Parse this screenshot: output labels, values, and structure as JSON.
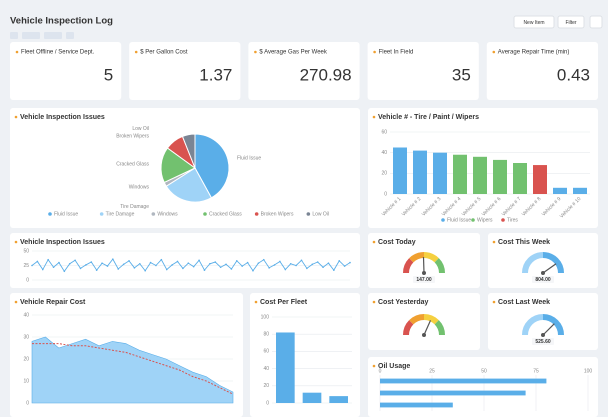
{
  "header": {
    "title": "Vehicle Inspection Log",
    "buttons": [
      "New Item",
      "Filter"
    ]
  },
  "kpis": [
    {
      "label": "Fleet Offline / Service Dept.",
      "value": 5
    },
    {
      "label": "$ Per Gallon Cost",
      "value": 1.37
    },
    {
      "label": "$ Average Gas Per Week",
      "value": 270.98
    },
    {
      "label": "Fleet In Field",
      "value": 35
    },
    {
      "label": "Average Repair Time (min)",
      "value": 0.43
    }
  ],
  "chart_data": [
    {
      "type": "pie",
      "title": "Vehicle Inspection Issues",
      "categories": [
        "Fluid Issue",
        "Tire Damage",
        "Windows",
        "Cracked Glass",
        "Broken Wipers",
        "Low Oil"
      ],
      "values": [
        42,
        24,
        2,
        17,
        9,
        6
      ],
      "colors": [
        "#5aaee8",
        "#9fd3f7",
        "#b0b7c0",
        "#72c16f",
        "#d9534f",
        "#7a8594"
      ]
    },
    {
      "type": "bar",
      "title": "Vehicle # - Tire / Paint / Wipers",
      "categories": [
        "Vehicle # 1",
        "Vehicle # 2",
        "Vehicle # 3",
        "Vehicle # 4",
        "Vehicle # 5",
        "Vehicle # 6",
        "Vehicle # 7",
        "Vehicle # 8",
        "Vehicle # 9",
        "Vehicle # 10"
      ],
      "series": [
        {
          "name": "Fluid Issue",
          "color": "#5aaee8",
          "values": [
            45,
            42,
            40,
            null,
            null,
            null,
            null,
            null,
            6,
            6
          ]
        },
        {
          "name": "Wipers",
          "color": "#72c16f",
          "values": [
            null,
            null,
            null,
            38,
            36,
            33,
            30,
            null,
            null,
            null
          ]
        },
        {
          "name": "Tires",
          "color": "#d9534f",
          "values": [
            null,
            null,
            null,
            null,
            null,
            null,
            null,
            28,
            null,
            null
          ]
        }
      ],
      "ylim": [
        0,
        60
      ],
      "yticks": [
        0,
        20,
        40,
        60
      ],
      "grid": true
    },
    {
      "type": "line",
      "title": "Vehicle Inspection Issues",
      "color": "#5aaee8",
      "values": [
        25,
        32,
        18,
        35,
        22,
        30,
        15,
        28,
        34,
        20,
        26,
        31,
        17,
        29,
        24,
        36,
        19,
        27,
        33,
        21,
        28,
        16,
        30,
        25,
        35,
        18,
        26,
        32,
        20,
        29,
        23,
        34,
        17,
        28,
        31,
        22,
        27,
        19,
        33,
        24,
        30,
        16,
        29,
        35,
        21,
        26,
        32,
        18,
        28,
        25,
        34,
        20,
        27,
        31,
        22,
        29,
        17,
        33,
        24,
        30
      ],
      "ylim": [
        0,
        50
      ],
      "yticks": [
        0,
        25,
        50
      ],
      "grid": true
    },
    {
      "type": "area",
      "title": "Vehicle Repair Cost",
      "color": "#9fd3f7",
      "trend_color": "#d9534f",
      "values": [
        28,
        30,
        25,
        27,
        29,
        26,
        28,
        27,
        24,
        22,
        20,
        17,
        14,
        12,
        8,
        5
      ],
      "trend": [
        27,
        27,
        27,
        26,
        26,
        25,
        24,
        23,
        21,
        19,
        17,
        15,
        12,
        10,
        7,
        4
      ],
      "ylim": [
        0,
        40
      ],
      "yticks": [
        0,
        10,
        20,
        30,
        40
      ],
      "grid": true
    },
    {
      "type": "bar",
      "title": "Cost Per Fleet",
      "categories": [
        null,
        null,
        null
      ],
      "series": [
        {
          "name": null,
          "color": "#5aaee8",
          "values": [
            82,
            12,
            8
          ]
        }
      ],
      "ylim": [
        0,
        100
      ],
      "yticks": [
        0,
        20,
        40,
        60,
        80,
        100
      ],
      "grid": true
    },
    {
      "type": "gauge",
      "title": "Cost Today",
      "values": [
        147
      ],
      "value_labels": [
        "147.00"
      ],
      "ylim": [
        0,
        300
      ],
      "colors": [
        "#d9534f",
        "#f0a030",
        "#f5d040",
        "#72c16f"
      ]
    },
    {
      "type": "gauge",
      "title": "Cost This Week",
      "values": [
        804
      ],
      "value_labels": [
        "804.00"
      ],
      "ylim": [
        0,
        1000
      ],
      "colors": [
        "#9fd3f7",
        "#5aaee8"
      ]
    },
    {
      "type": "gauge",
      "title": "Cost Yesterday",
      "values": [
        190
      ],
      "ylim": [
        0,
        300
      ],
      "colors": [
        "#d9534f",
        "#f0a030",
        "#f5d040",
        "#72c16f"
      ]
    },
    {
      "type": "gauge",
      "title": "Cost Last Week",
      "values": [
        525.6
      ],
      "value_labels": [
        "525.60"
      ],
      "ylim": [
        0,
        700
      ],
      "colors": [
        "#9fd3f7",
        "#5aaee8"
      ]
    },
    {
      "type": "hbar",
      "title": "Oil Usage",
      "color": "#5aaee8",
      "categories": [
        null,
        null,
        null
      ],
      "values": [
        80,
        70,
        35
      ],
      "xlim": [
        0,
        100
      ],
      "xticks": [
        0,
        25,
        50,
        75,
        100
      ],
      "grid": true
    }
  ]
}
